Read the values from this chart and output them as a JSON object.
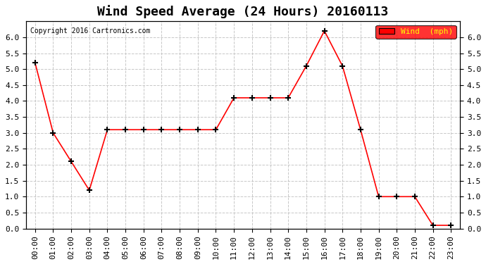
{
  "title": "Wind Speed Average (24 Hours) 20160113",
  "copyright": "Copyright 2016 Cartronics.com",
  "legend_label": "Wind  (mph)",
  "x_labels": [
    "00:00",
    "01:00",
    "02:00",
    "03:00",
    "04:00",
    "05:00",
    "06:00",
    "07:00",
    "08:00",
    "09:00",
    "10:00",
    "11:00",
    "12:00",
    "13:00",
    "14:00",
    "15:00",
    "16:00",
    "17:00",
    "18:00",
    "19:00",
    "20:00",
    "21:00",
    "22:00",
    "23:00"
  ],
  "y_values": [
    5.2,
    3.0,
    2.1,
    1.2,
    3.1,
    3.1,
    3.1,
    3.1,
    3.1,
    3.1,
    3.1,
    4.1,
    4.1,
    4.1,
    4.1,
    5.1,
    6.2,
    5.1,
    3.1,
    1.0,
    1.0,
    1.0,
    0.1,
    0.1
  ],
  "line_color": "red",
  "marker_color": "black",
  "ylim": [
    0,
    6.5
  ],
  "yticks": [
    0.0,
    0.5,
    1.0,
    1.5,
    2.0,
    2.5,
    3.0,
    3.5,
    4.0,
    4.5,
    5.0,
    5.5,
    6.0
  ],
  "bg_color": "#ffffff",
  "grid_color": "#c8c8c8",
  "title_fontsize": 13,
  "axis_fontsize": 8,
  "legend_bg": "#ff0000",
  "legend_text_color": "#ffff00"
}
